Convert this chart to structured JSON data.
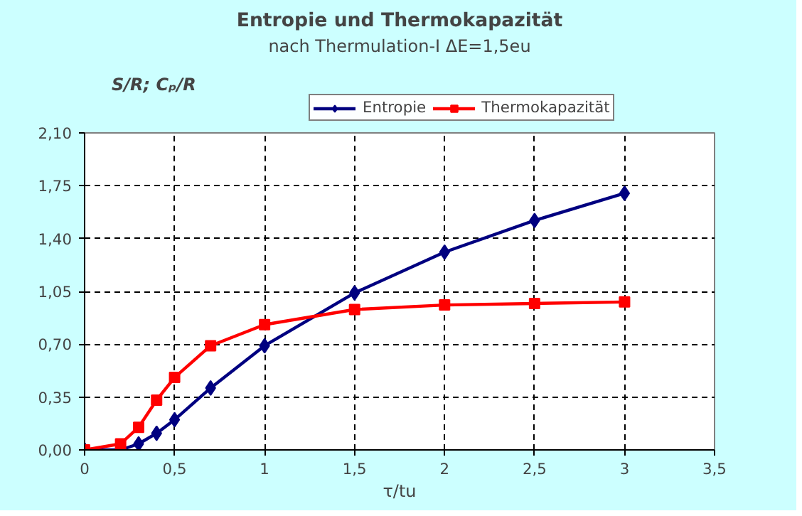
{
  "chart_data": {
    "type": "line",
    "title": "Entropie und Thermokapazität",
    "subtitle": "nach Thermulation-I ΔE=1,5eu",
    "xlabel": "τ/tu",
    "ylabel": "S/R; Cₚ/R",
    "x": [
      0,
      0.2,
      0.3,
      0.4,
      0.5,
      0.7,
      1,
      1.5,
      2,
      2.5,
      3
    ],
    "series": [
      {
        "name": "Entropie",
        "color": "#000080",
        "marker": "diamond",
        "values": [
          0,
          0,
          0.04,
          0.11,
          0.2,
          0.41,
          0.69,
          1.04,
          1.31,
          1.52,
          1.7
        ]
      },
      {
        "name": "Thermokapazität",
        "color": "#ff0000",
        "marker": "square",
        "values": [
          0,
          0.04,
          0.15,
          0.33,
          0.48,
          0.69,
          0.83,
          0.93,
          0.96,
          0.97,
          0.98
        ]
      }
    ],
    "xlim": [
      0,
      3.5
    ],
    "xticks": [
      0,
      {
        "value": 0.5,
        "label": "0,5"
      },
      1,
      {
        "value": 1.5,
        "label": "1,5"
      },
      2,
      {
        "value": 2.5,
        "label": "2,5"
      },
      3,
      {
        "value": 3.5,
        "label": "3,5"
      }
    ],
    "ylim": [
      0,
      2.1
    ],
    "yticks": [
      {
        "value": 0,
        "label": "0,00"
      },
      {
        "value": 0.35,
        "label": "0,35"
      },
      {
        "value": 0.7,
        "label": "0,70"
      },
      {
        "value": 1.05,
        "label": "1,05"
      },
      {
        "value": 1.4,
        "label": "1,40"
      },
      {
        "value": 1.75,
        "label": "1,75"
      },
      {
        "value": 2.1,
        "label": "2,10"
      }
    ],
    "grid": true,
    "legend": "top",
    "line_style": "solid"
  }
}
